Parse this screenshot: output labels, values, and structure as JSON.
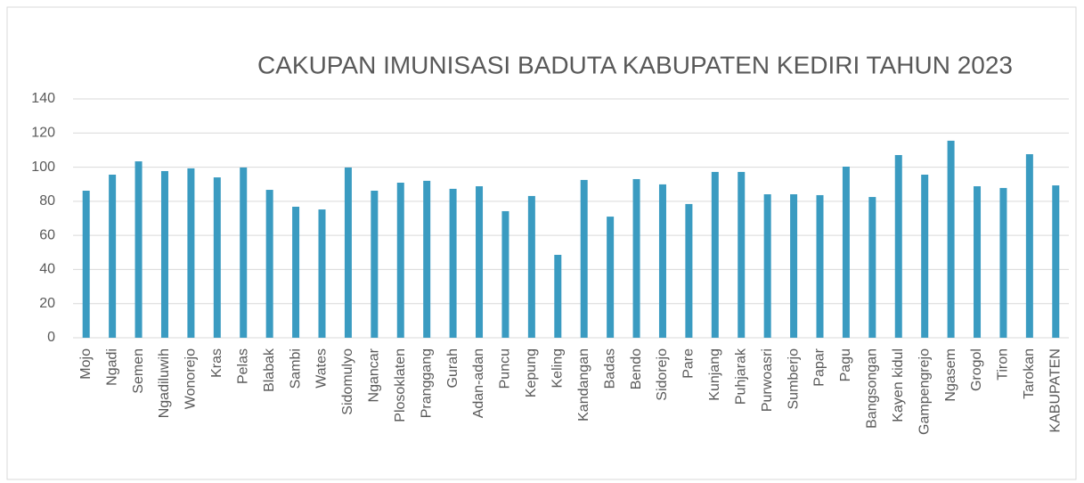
{
  "chart_data": {
    "type": "bar",
    "title": "CAKUPAN IMUNISASI BADUTA KABUPATEN KEDIRI TAHUN 2023",
    "categories": [
      "Mojo",
      "Ngadi",
      "Semen",
      "Ngadiluwih",
      "Wonorejo",
      "Kras",
      "Pelas",
      "Blabak",
      "Sambi",
      "Wates",
      "Sidomulyo",
      "Ngancar",
      "Plosoklaten",
      "Pranggang",
      "Gurah",
      "Adan-adan",
      "Puncu",
      "Kepung",
      "Keling",
      "Kandangan",
      "Badas",
      "Bendo",
      "Sidorejo",
      "Pare",
      "Kunjang",
      "Puhjarak",
      "Purwoasri",
      "Sumberjo",
      "Papar",
      "Pagu",
      "Bangsongan",
      "Kayen kidul",
      "Gampengrejo",
      "Ngasem",
      "Grogol",
      "Tiron",
      "Tarokan",
      "KABUPATEN"
    ],
    "values": [
      86.2,
      95.6,
      103.4,
      97.7,
      99.3,
      94,
      99.8,
      86.7,
      76.8,
      75.2,
      99.8,
      86.2,
      90.9,
      92,
      87.3,
      88.8,
      74.2,
      83.1,
      48.6,
      92.5,
      71,
      93,
      89.9,
      78.4,
      97.2,
      97.2,
      84.1,
      84.1,
      83.6,
      100.3,
      82.5,
      107.1,
      95.6,
      115.5,
      88.8,
      87.8,
      107.6,
      89.3
    ],
    "color": "#3a9bc1",
    "ylim": [
      0,
      140
    ],
    "yticks": [
      0,
      20,
      40,
      60,
      80,
      100,
      120,
      140
    ],
    "grid": true
  }
}
